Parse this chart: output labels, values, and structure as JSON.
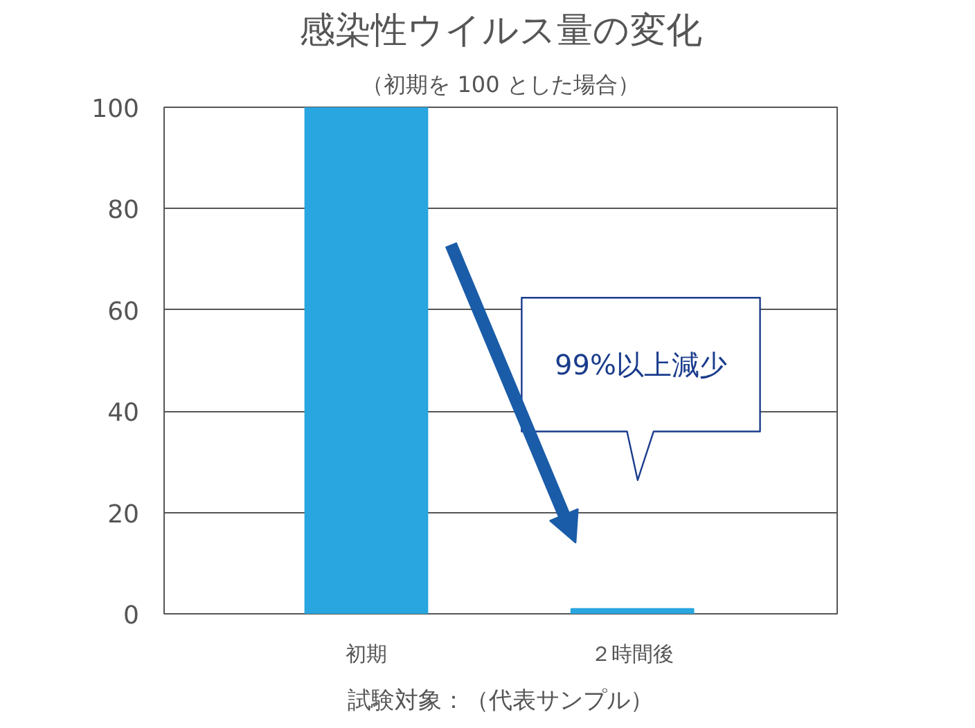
{
  "chart_data": {
    "type": "bar",
    "title": "感染性ウイルス量の変化",
    "subtitle": "（初期を 100 とした場合）",
    "categories": [
      "初期",
      "２時間後"
    ],
    "values": [
      100,
      1
    ],
    "color": "#29a5df",
    "ylim": [
      0,
      100
    ],
    "yticks": [
      0,
      20,
      40,
      60,
      80,
      100
    ],
    "grid": "y",
    "annotations": [
      "99%以上減少",
      "試験対象：（代表サンプル）"
    ]
  }
}
